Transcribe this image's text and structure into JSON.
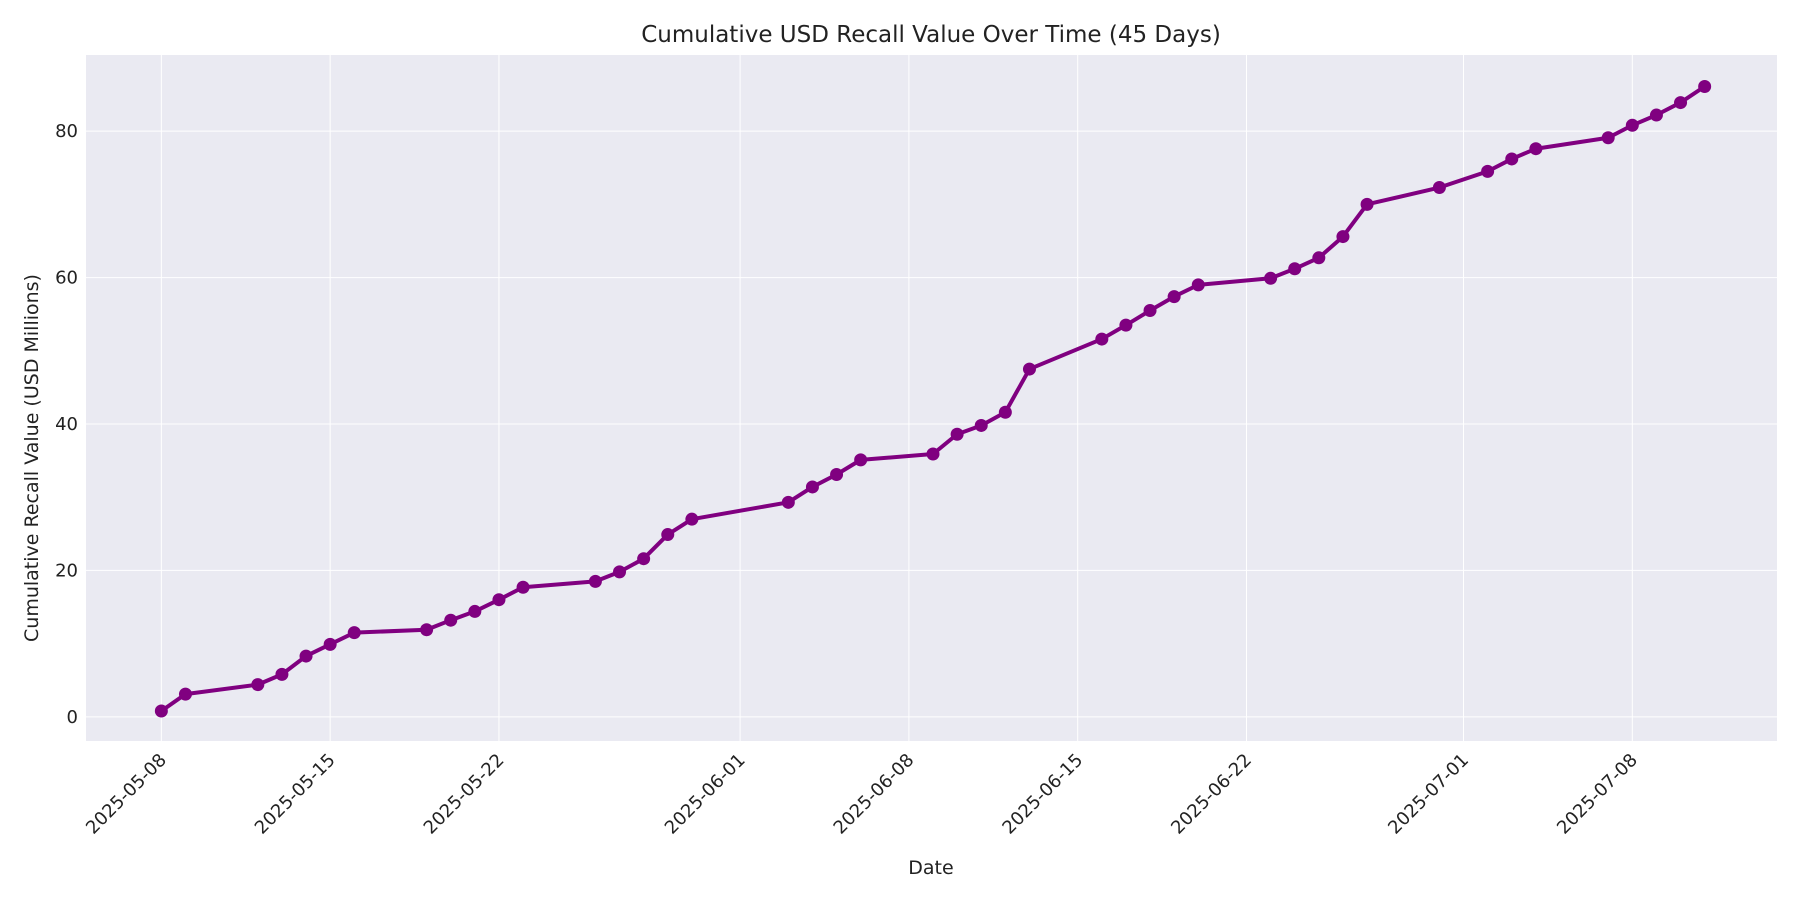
{
  "chart_data": {
    "type": "line",
    "title": "Cumulative USD Recall Value Over Time (45 Days)",
    "xlabel": "Date",
    "ylabel": "Cumulative Recall Value (USD Millions)",
    "xlim": [
      "2025-05-04T21:00",
      "2025-07-14T00:00"
    ],
    "ylim": [
      -3.3,
      90.4
    ],
    "grid": true,
    "color": "#800080",
    "background": "#eaeaf2",
    "x_ticks": [
      "2025-05-08",
      "2025-05-15",
      "2025-05-22",
      "2025-06-01",
      "2025-06-08",
      "2025-06-15",
      "2025-06-22",
      "2025-07-01",
      "2025-07-08"
    ],
    "y_ticks": [
      0,
      20,
      40,
      60,
      80
    ],
    "series": [
      {
        "name": "Cumulative Recall Value",
        "x": [
          "2025-05-08",
          "2025-05-09",
          "2025-05-12",
          "2025-05-13",
          "2025-05-14",
          "2025-05-15",
          "2025-05-16",
          "2025-05-19",
          "2025-05-20",
          "2025-05-21",
          "2025-05-22",
          "2025-05-23",
          "2025-05-26",
          "2025-05-27",
          "2025-05-28",
          "2025-05-29",
          "2025-05-30",
          "2025-06-03",
          "2025-06-04",
          "2025-06-05",
          "2025-06-06",
          "2025-06-09",
          "2025-06-10",
          "2025-06-11",
          "2025-06-12",
          "2025-06-13",
          "2025-06-16",
          "2025-06-17",
          "2025-06-18",
          "2025-06-19",
          "2025-06-20",
          "2025-06-23",
          "2025-06-24",
          "2025-06-25",
          "2025-06-26",
          "2025-06-27",
          "2025-06-30",
          "2025-07-02",
          "2025-07-03",
          "2025-07-04",
          "2025-07-07",
          "2025-07-08",
          "2025-07-09",
          "2025-07-10",
          "2025-07-11"
        ],
        "values": [
          0.8,
          3.1,
          4.4,
          5.8,
          8.3,
          9.9,
          11.5,
          11.9,
          13.2,
          14.4,
          16.0,
          17.7,
          18.5,
          19.8,
          21.6,
          24.9,
          27.0,
          29.3,
          31.4,
          33.1,
          35.1,
          35.9,
          38.6,
          39.8,
          41.6,
          47.5,
          51.6,
          53.5,
          55.5,
          57.4,
          59.0,
          59.9,
          61.2,
          62.7,
          65.6,
          70.0,
          72.3,
          74.5,
          76.2,
          77.6,
          79.1,
          80.8,
          82.2,
          83.9,
          86.1
        ]
      }
    ]
  }
}
